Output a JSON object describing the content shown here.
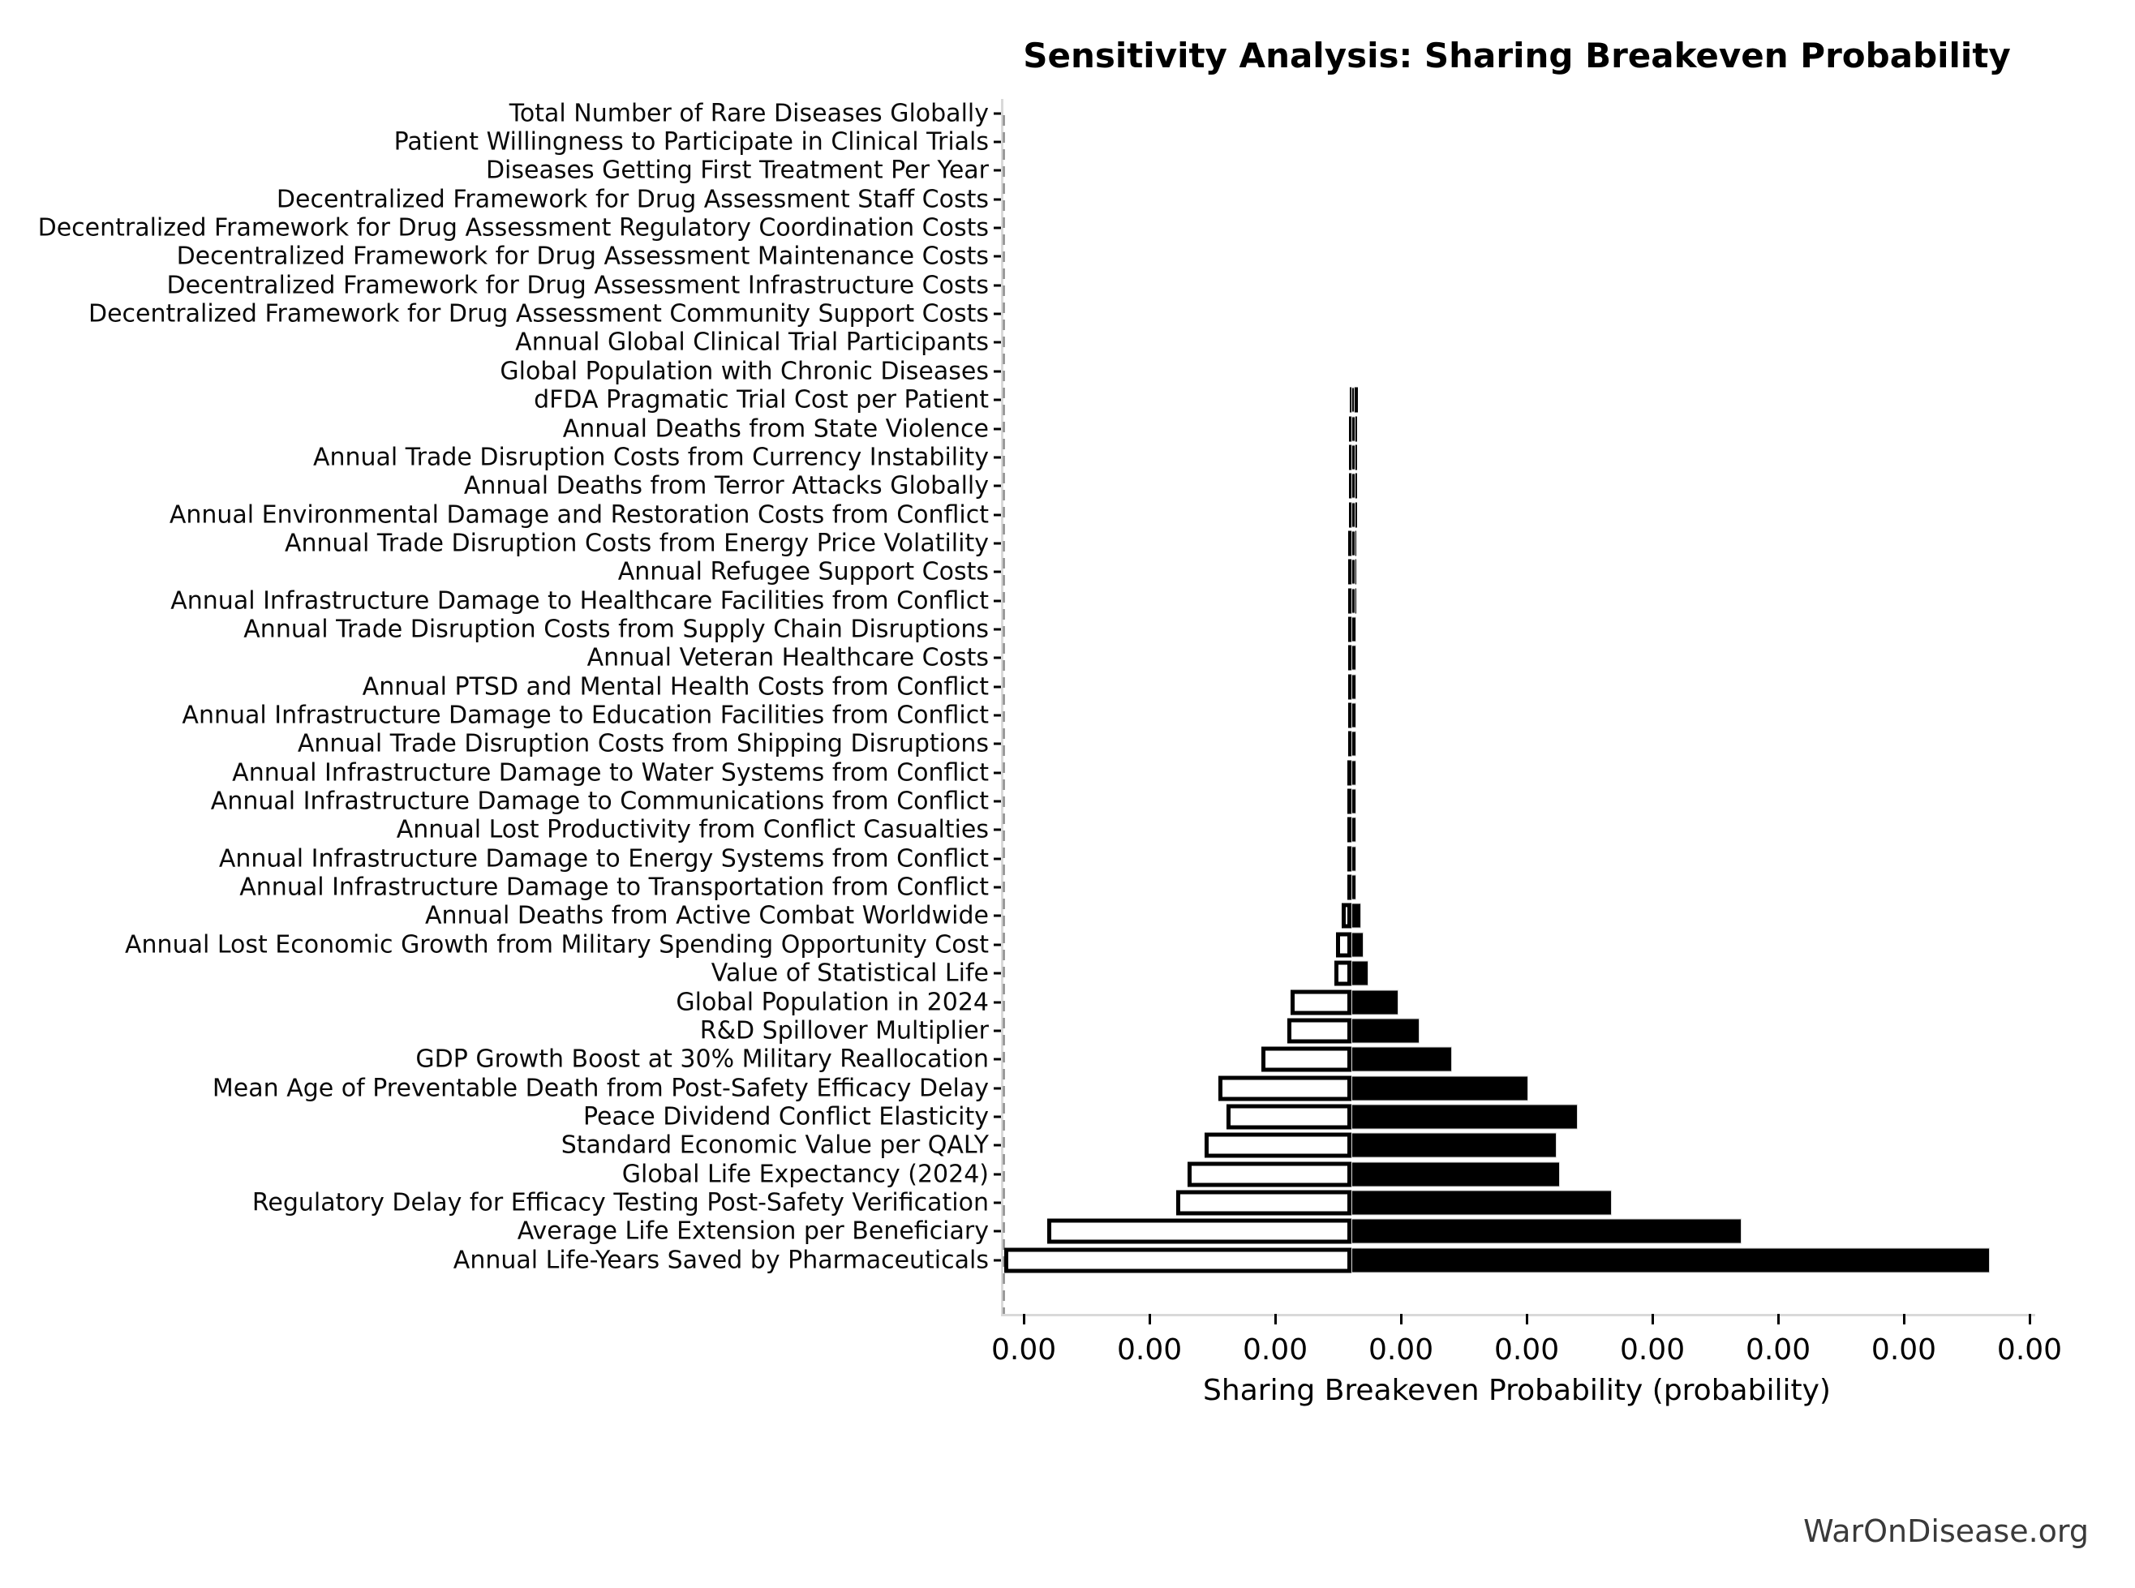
{
  "title": "Sensitivity Analysis: Sharing Breakeven Probability",
  "watermark": "WarOnDisease.org",
  "chart_data": {
    "type": "bar",
    "variant": "tornado-sensitivity",
    "title": "Sensitivity Analysis: Sharing Breakeven Probability",
    "xlabel": "Sharing Breakeven Probability (probability)",
    "x_tick_labels": [
      "0.00",
      "0.00",
      "0.00",
      "0.00",
      "0.00",
      "0.00",
      "0.00",
      "0.00",
      "0.00"
    ],
    "x_first_tick_frac": 0.0197,
    "x_tick_step_frac": 0.12185,
    "baseline_frac": 0.3373,
    "legend": "white bar = low-side excursion, black bar = high-side excursion, fractions are of x-axis width",
    "rows": [
      {
        "label": "Total Number of Rare Diseases Globally",
        "low": null,
        "high": null
      },
      {
        "label": "Patient Willingness to Participate in Clinical Trials",
        "low": null,
        "high": null
      },
      {
        "label": "Diseases Getting First Treatment Per Year",
        "low": null,
        "high": null
      },
      {
        "label": "Decentralized Framework for Drug Assessment Staff Costs",
        "low": null,
        "high": null
      },
      {
        "label": "Decentralized Framework for Drug Assessment Regulatory Coordination Costs",
        "low": null,
        "high": null
      },
      {
        "label": "Decentralized Framework for Drug Assessment Maintenance Costs",
        "low": null,
        "high": null
      },
      {
        "label": "Decentralized Framework for Drug Assessment Infrastructure Costs",
        "low": null,
        "high": null
      },
      {
        "label": "Decentralized Framework for Drug Assessment Community Support Costs",
        "low": null,
        "high": null
      },
      {
        "label": "Annual Global Clinical Trial Participants",
        "low": null,
        "high": null
      },
      {
        "label": "Global Population with Chronic Diseases",
        "low": null,
        "high": null
      },
      {
        "label": "dFDA Pragmatic Trial Cost per Patient",
        "low": 0.3355,
        "high": 0.3407
      },
      {
        "label": "Annual Deaths from State Violence",
        "low": 0.335,
        "high": 0.3409
      },
      {
        "label": "Annual Trade Disruption Costs from Currency Instability",
        "low": 0.3349,
        "high": 0.3411
      },
      {
        "label": "Annual Deaths from Terror Attacks Globally",
        "low": 0.3348,
        "high": 0.3412
      },
      {
        "label": "Annual Environmental Damage and Restoration Costs from Conflict",
        "low": 0.3346,
        "high": 0.3412
      },
      {
        "label": "Annual Trade Disruption Costs from Energy Price Volatility",
        "low": 0.3345,
        "high": 0.3413
      },
      {
        "label": "Annual Refugee Support Costs",
        "low": 0.3344,
        "high": 0.3414
      },
      {
        "label": "Annual Infrastructure Damage to Healthcare Facilities from Conflict",
        "low": 0.3343,
        "high": 0.3415
      },
      {
        "label": "Annual Trade Disruption Costs from Supply Chain Disruptions",
        "low": 0.3342,
        "high": 0.3416
      },
      {
        "label": "Annual Veteran Healthcare Costs",
        "low": 0.3341,
        "high": 0.3417
      },
      {
        "label": "Annual PTSD and Mental Health Costs from Conflict",
        "low": 0.334,
        "high": 0.3418
      },
      {
        "label": "Annual Infrastructure Damage to Education Facilities from Conflict",
        "low": 0.3339,
        "high": 0.3419
      },
      {
        "label": "Annual Trade Disruption Costs from Shipping Disruptions",
        "low": 0.3338,
        "high": 0.342
      },
      {
        "label": "Annual Infrastructure Damage to Water Systems from Conflict",
        "low": 0.3337,
        "high": 0.342
      },
      {
        "label": "Annual Infrastructure Damage to Communications from Conflict",
        "low": 0.3337,
        "high": 0.3421
      },
      {
        "label": "Annual Lost Productivity from Conflict Casualties",
        "low": 0.3336,
        "high": 0.3422
      },
      {
        "label": "Annual Infrastructure Damage to Energy Systems from Conflict",
        "low": 0.3335,
        "high": 0.3422
      },
      {
        "label": "Annual Infrastructure Damage to Transportation from Conflict",
        "low": 0.3333,
        "high": 0.3423
      },
      {
        "label": "Annual Deaths from Active Combat Worldwide",
        "low": 0.3276,
        "high": 0.3467
      },
      {
        "label": "Annual Lost Economic Growth from Military Spending Opportunity Cost",
        "low": 0.3223,
        "high": 0.3493
      },
      {
        "label": "Value of Statistical Life",
        "low": 0.321,
        "high": 0.354
      },
      {
        "label": "Global Population in 2024",
        "low": 0.2783,
        "high": 0.3829
      },
      {
        "label": "R&D Spillover Multiplier",
        "low": 0.2752,
        "high": 0.4033
      },
      {
        "label": "GDP Growth Boost at 30% Military Reallocation",
        "low": 0.25,
        "high": 0.4348
      },
      {
        "label": "Mean Age of Preventable Death from Post-Safety Efficacy Delay",
        "low": 0.2083,
        "high": 0.5087
      },
      {
        "label": "Peace Dividend Conflict Elasticity",
        "low": 0.2162,
        "high": 0.5566
      },
      {
        "label": "Standard Economic Value per QALY",
        "low": 0.195,
        "high": 0.5362
      },
      {
        "label": "Global Life Expectancy (2024)",
        "low": 0.1785,
        "high": 0.5393
      },
      {
        "label": "Regulatory Delay for Efficacy Testing Post-Safety Verification",
        "low": 0.1675,
        "high": 0.5896
      },
      {
        "label": "Average Life Extension per Beneficiary",
        "low": 0.0425,
        "high": 0.7154
      },
      {
        "label": "Annual Life-Years Saved by Pharmaceuticals",
        "low": 0.0008,
        "high": 0.956
      }
    ]
  }
}
